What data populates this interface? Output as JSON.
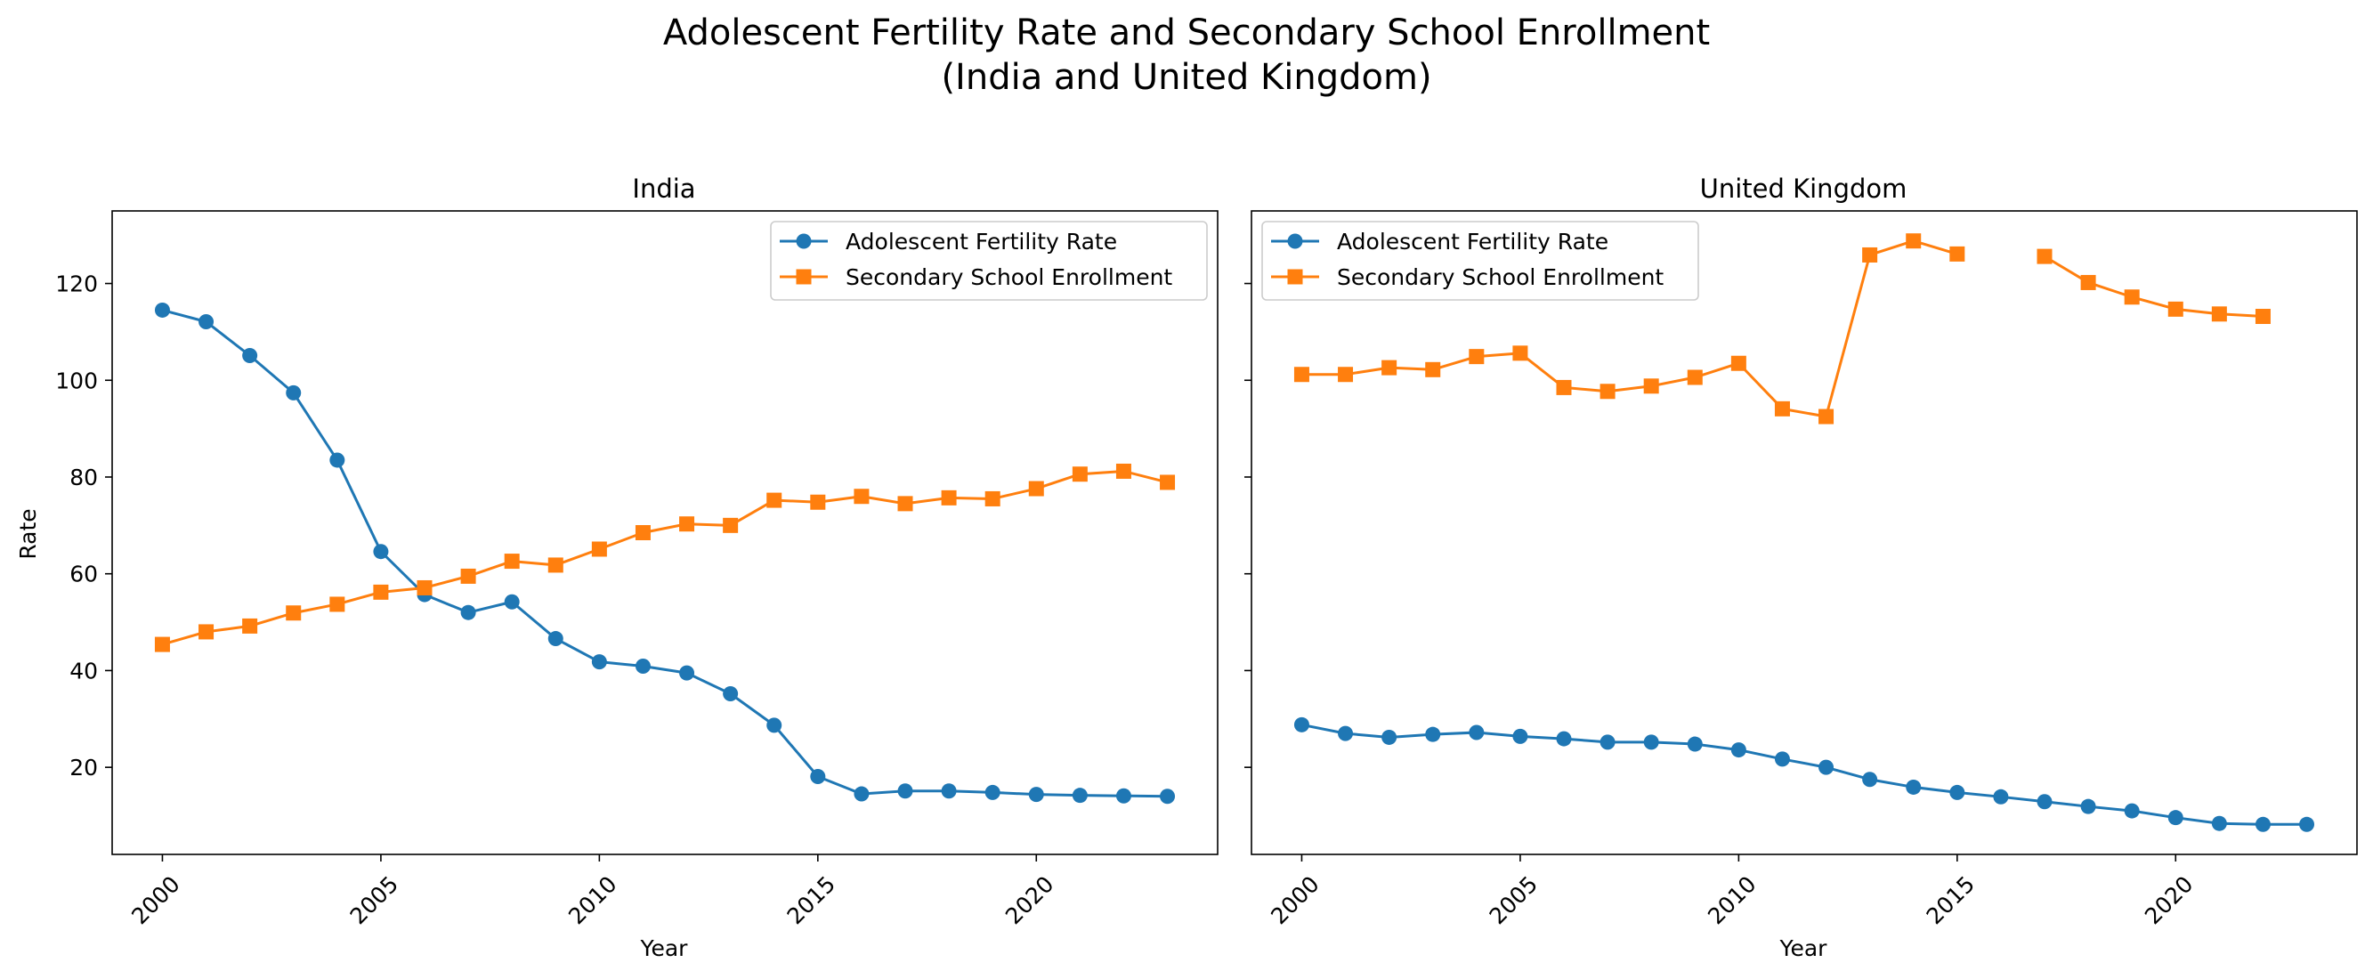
{
  "figure": {
    "title_line1": "Adolescent Fertility Rate and Secondary School Enrollment",
    "title_line2": "(India and United Kingdom)"
  },
  "colors": {
    "fertility": "#1f77b4",
    "enrollment": "#ff7f0e"
  },
  "chart_data": [
    {
      "type": "line",
      "title": "India",
      "xlabel": "Year",
      "ylabel": "Rate",
      "xlim": [
        1998.85,
        2024.15
      ],
      "ylim": [
        2,
        135
      ],
      "xticks": [
        2000,
        2005,
        2010,
        2015,
        2020
      ],
      "yticks": [
        20,
        40,
        60,
        80,
        100,
        120
      ],
      "grid": false,
      "legend": "top-right",
      "x": [
        2000,
        2001,
        2002,
        2003,
        2004,
        2005,
        2006,
        2007,
        2008,
        2009,
        2010,
        2011,
        2012,
        2013,
        2014,
        2015,
        2016,
        2017,
        2018,
        2019,
        2020,
        2021,
        2022,
        2023
      ],
      "series": [
        {
          "name": "Adolescent Fertility Rate",
          "marker": "circle",
          "values": [
            114.5,
            112.1,
            105.1,
            97.4,
            83.5,
            64.6,
            55.7,
            52.0,
            54.2,
            46.6,
            41.8,
            40.9,
            39.5,
            35.2,
            28.7,
            18.1,
            14.5,
            15.1,
            15.1,
            14.8,
            14.4,
            14.2,
            14.1,
            14.0
          ]
        },
        {
          "name": "Secondary School Enrollment",
          "marker": "square",
          "values": [
            45.4,
            48.0,
            49.2,
            51.9,
            53.7,
            56.2,
            57.1,
            59.5,
            62.6,
            61.8,
            65.1,
            68.5,
            70.3,
            70.0,
            75.2,
            74.8,
            76.0,
            74.5,
            75.7,
            75.5,
            77.6,
            80.6,
            81.2,
            78.9
          ]
        }
      ]
    },
    {
      "type": "line",
      "title": "United Kingdom",
      "xlabel": "Year",
      "ylabel": "",
      "xlim": [
        1998.85,
        2024.15
      ],
      "ylim": [
        2,
        135
      ],
      "xticks": [
        2000,
        2005,
        2010,
        2015,
        2020
      ],
      "yticks": [
        20,
        40,
        60,
        80,
        100,
        120
      ],
      "grid": false,
      "legend": "top-left",
      "x": [
        2000,
        2001,
        2002,
        2003,
        2004,
        2005,
        2006,
        2007,
        2008,
        2009,
        2010,
        2011,
        2012,
        2013,
        2014,
        2015,
        2016,
        2017,
        2018,
        2019,
        2020,
        2021,
        2022,
        2023
      ],
      "series": [
        {
          "name": "Adolescent Fertility Rate",
          "marker": "circle",
          "values": [
            28.8,
            27.0,
            26.2,
            26.8,
            27.2,
            26.4,
            25.9,
            25.2,
            25.2,
            24.8,
            23.6,
            21.7,
            20.0,
            17.5,
            15.9,
            14.8,
            13.9,
            12.9,
            11.9,
            11.0,
            9.6,
            8.4,
            8.2,
            8.2
          ]
        },
        {
          "name": "Secondary School Enrollment",
          "marker": "square",
          "values": [
            101.2,
            101.2,
            102.6,
            102.2,
            104.9,
            105.6,
            98.5,
            97.7,
            98.8,
            100.6,
            103.5,
            94.1,
            92.5,
            125.9,
            128.8,
            126.1,
            null,
            125.6,
            120.2,
            117.2,
            114.7,
            113.7,
            113.2,
            null
          ]
        }
      ]
    }
  ]
}
